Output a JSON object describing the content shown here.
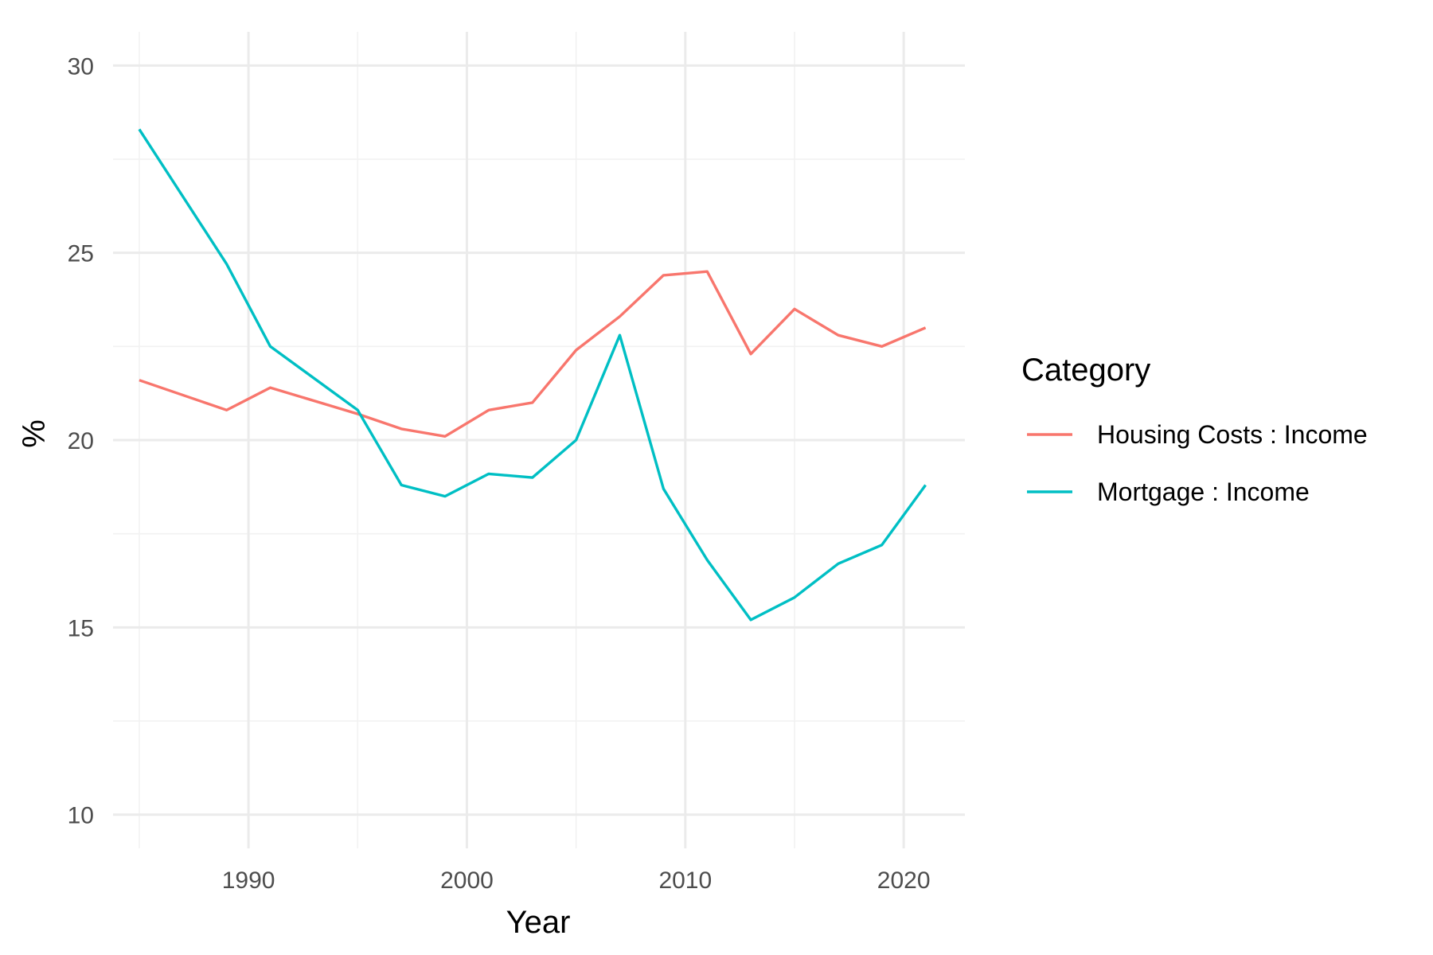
{
  "chart_data": {
    "type": "line",
    "xlabel": "Year",
    "ylabel": "%",
    "xlim": [
      1983.8,
      2022.8
    ],
    "ylim": [
      9.1,
      30.9
    ],
    "x_ticks": [
      1990,
      2000,
      2010,
      2020
    ],
    "y_ticks": [
      10,
      15,
      20,
      25,
      30
    ],
    "x_minor_ticks": [
      1985,
      1995,
      2005,
      2015
    ],
    "y_minor_ticks": [
      12.5,
      17.5,
      22.5,
      27.5
    ],
    "grid": true,
    "legend": {
      "title": "Category",
      "placement": "right"
    },
    "series": [
      {
        "name": "Housing Costs : Income",
        "color": "#F8766D",
        "x": [
          1985,
          1989,
          1991,
          1995,
          1997,
          1999,
          2001,
          2003,
          2005,
          2007,
          2009,
          2011,
          2013,
          2015,
          2017,
          2019,
          2021
        ],
        "values": [
          21.6,
          20.8,
          21.4,
          20.7,
          20.3,
          20.1,
          20.8,
          21.0,
          22.4,
          23.3,
          24.4,
          24.5,
          22.3,
          23.5,
          22.8,
          22.5,
          23.0
        ]
      },
      {
        "name": "Mortgage : Income",
        "color": "#00BFC4",
        "x": [
          1985,
          1989,
          1991,
          1995,
          1997,
          1999,
          2001,
          2003,
          2005,
          2007,
          2009,
          2011,
          2013,
          2015,
          2017,
          2019,
          2021
        ],
        "values": [
          28.3,
          24.7,
          22.5,
          20.8,
          18.8,
          18.5,
          19.1,
          19.0,
          20.0,
          22.8,
          18.7,
          16.8,
          15.2,
          15.8,
          16.7,
          17.2,
          18.8
        ]
      }
    ]
  }
}
